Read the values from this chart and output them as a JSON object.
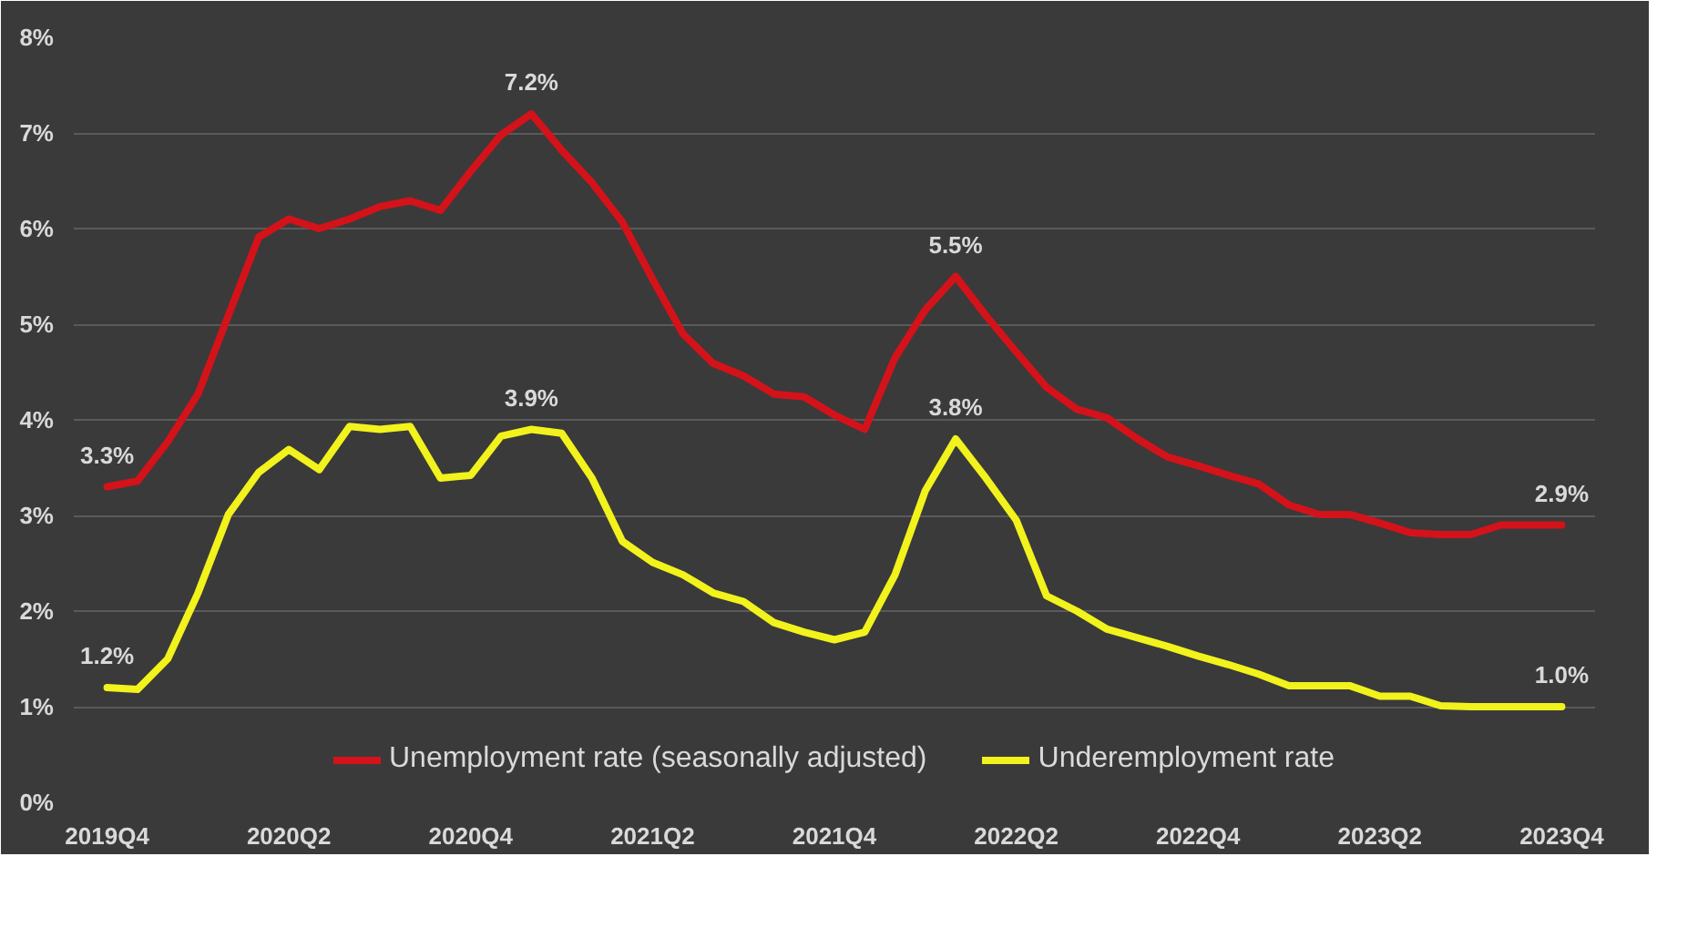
{
  "chart_data": {
    "type": "line",
    "categories": [
      "2019Q4",
      null,
      null,
      null,
      null,
      null,
      "2020Q2",
      null,
      null,
      null,
      null,
      null,
      "2020Q4",
      null,
      null,
      null,
      null,
      null,
      "2021Q2",
      null,
      null,
      null,
      null,
      null,
      "2021Q4",
      null,
      null,
      null,
      null,
      null,
      "2022Q2",
      null,
      null,
      null,
      null,
      null,
      "2022Q4",
      null,
      null,
      null,
      null,
      null,
      "2023Q2",
      null,
      null,
      null,
      null,
      null,
      "2023Q4"
    ],
    "series": [
      {
        "name": "Unemployment rate (seasonally adjusted)",
        "color": "#d4121a",
        "values": [
          3.3,
          3.36,
          3.77,
          4.27,
          5.09,
          5.91,
          6.1,
          6.0,
          6.1,
          6.23,
          6.29,
          6.19,
          6.6,
          6.98,
          7.2,
          6.82,
          6.48,
          6.07,
          5.47,
          4.9,
          4.59,
          4.46,
          4.27,
          4.24,
          4.05,
          3.9,
          4.65,
          5.15,
          5.5,
          5.09,
          4.71,
          4.34,
          4.11,
          4.02,
          3.8,
          3.61,
          3.52,
          3.42,
          3.33,
          3.11,
          3.01,
          3.01,
          2.92,
          2.82,
          2.8,
          2.8,
          2.9,
          2.9,
          2.9
        ]
      },
      {
        "name": "Underemployment rate",
        "color": "#f2f21c",
        "values": [
          1.2,
          1.18,
          1.5,
          2.19,
          3.01,
          3.45,
          3.69,
          3.48,
          3.93,
          3.9,
          3.93,
          3.39,
          3.42,
          3.83,
          3.9,
          3.86,
          3.39,
          2.73,
          2.51,
          2.38,
          2.19,
          2.1,
          1.88,
          1.78,
          1.7,
          1.78,
          2.38,
          3.26,
          3.8,
          3.39,
          2.95,
          2.16,
          2.0,
          1.81,
          1.72,
          1.63,
          1.53,
          1.44,
          1.34,
          1.22,
          1.22,
          1.22,
          1.11,
          1.11,
          1.01,
          1.0,
          1.0,
          1.0,
          1.0
        ]
      }
    ],
    "ylim": [
      0,
      8
    ],
    "yticks": [
      {
        "value": 0,
        "label": "0%"
      },
      {
        "value": 1,
        "label": "1%"
      },
      {
        "value": 2,
        "label": "2%"
      },
      {
        "value": 3,
        "label": "3%"
      },
      {
        "value": 4,
        "label": "4%"
      },
      {
        "value": 5,
        "label": "5%"
      },
      {
        "value": 6,
        "label": "6%"
      },
      {
        "value": 7,
        "label": "7%"
      },
      {
        "value": 8,
        "label": "8%"
      }
    ],
    "annotations": [
      {
        "text": "3.3%",
        "x": "2019Q4",
        "y": 3.3
      },
      {
        "text": "7.2%",
        "y": 7.2
      },
      {
        "text": "5.5%",
        "y": 5.5
      },
      {
        "text": "2.9%",
        "x": "2023Q4",
        "y": 2.9
      },
      {
        "text": "1.2%",
        "x": "2019Q4",
        "y": 1.2
      },
      {
        "text": "3.9%",
        "y": 3.9
      },
      {
        "text": "3.8%",
        "y": 3.8
      },
      {
        "text": "1.0%",
        "x": "2023Q4",
        "y": 1.0
      }
    ],
    "grid": "y",
    "legend": "bottom",
    "line_style": "solid"
  }
}
